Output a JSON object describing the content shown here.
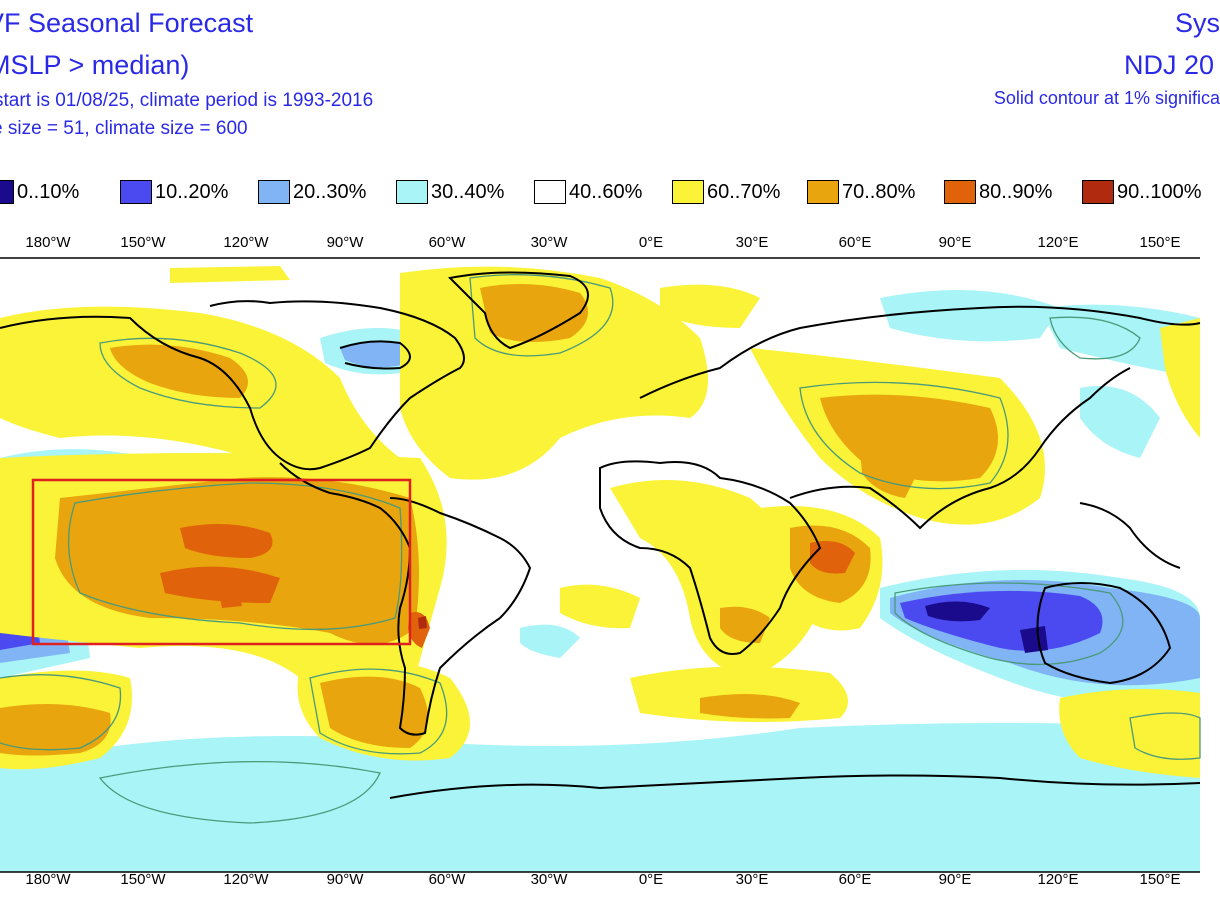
{
  "header": {
    "title": "VF Seasonal Forecast",
    "subtitle": "MSLP > median)",
    "start_info": "start is 01/08/25, climate period is 1993-2016",
    "sizes": "e size = 51, climate size = 600",
    "system": "Sys",
    "period": "NDJ 20",
    "significance": "Solid contour at 1% significa"
  },
  "legend": [
    {
      "label": "0..10%",
      "color": "#1a0a8c"
    },
    {
      "label": "10..20%",
      "color": "#4a4af0"
    },
    {
      "label": "20..30%",
      "color": "#80b4f5"
    },
    {
      "label": "30..40%",
      "color": "#a8f4f6"
    },
    {
      "label": "40..60%",
      "color": "#ffffff"
    },
    {
      "label": "60..70%",
      "color": "#faf337"
    },
    {
      "label": "70..80%",
      "color": "#e8a50e"
    },
    {
      "label": "80..90%",
      "color": "#e0620a"
    },
    {
      "label": "90..100%",
      "color": "#b02a10"
    }
  ],
  "longitude_labels": [
    "180°W",
    "150°W",
    "120°W",
    "90°W",
    "60°W",
    "30°W",
    "0°E",
    "30°E",
    "60°E",
    "90°E",
    "120°E",
    "150°E"
  ],
  "highlight_box_color": "#e02020"
}
